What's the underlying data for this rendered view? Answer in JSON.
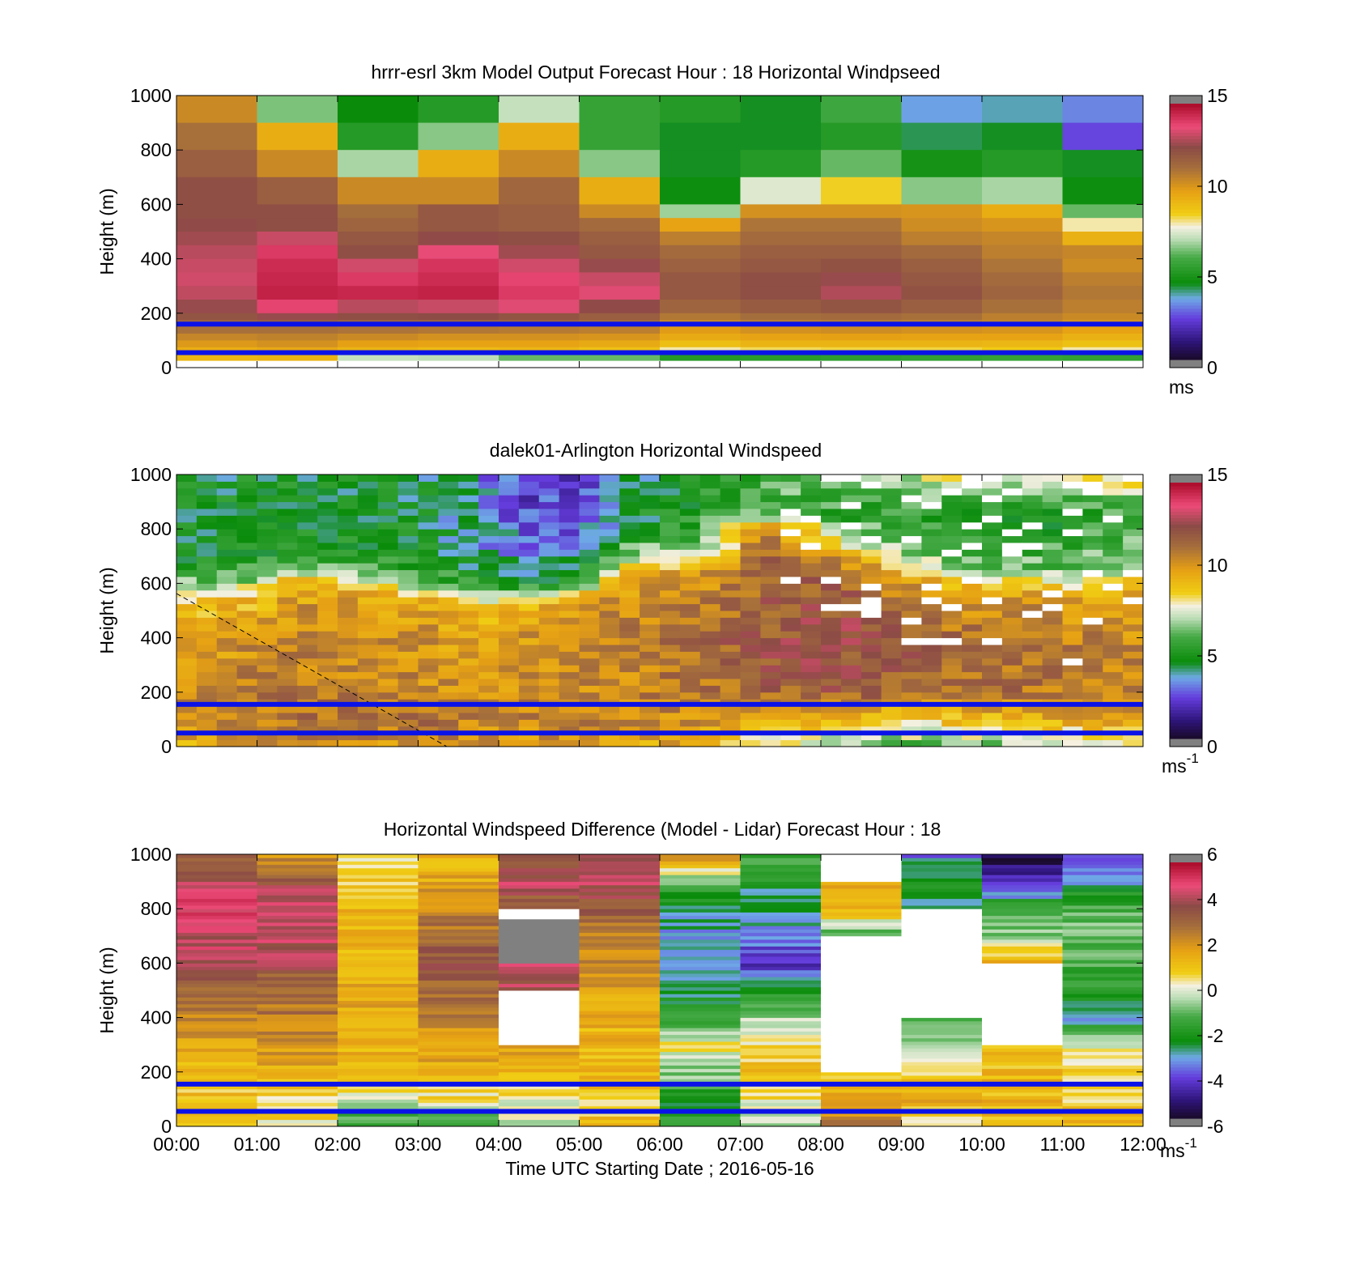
{
  "chart_data": [
    {
      "type": "heatmap",
      "title": "hrrr-esrl 3km Model Output   Forecast Hour : 18 Horizontal Windpseed",
      "ylabel": "Height (m)",
      "xlabel": "",
      "ylim": [
        0,
        1000
      ],
      "yticks": [
        "0",
        "200",
        "400",
        "600",
        "800",
        "1000"
      ],
      "xlim_hours": [
        0,
        12
      ],
      "colorbar": {
        "min": 0,
        "max": 15,
        "ticks": [
          "0",
          "5",
          "10",
          "15"
        ],
        "unit": "ms"
      },
      "time_step_hours": 1,
      "height_levels_top_m": [
        1000,
        900,
        800,
        700,
        600,
        550,
        500,
        450,
        400,
        350,
        300,
        250,
        200,
        175,
        150,
        125,
        100,
        75,
        50,
        25
      ],
      "values": [
        [
          10.5,
          6.5,
          4.5,
          5.2,
          7.2,
          5.6,
          5.2,
          4.4,
          5.8,
          3.5,
          3.8,
          3.2
        ],
        [
          11.2,
          9.5,
          5.2,
          6.6,
          9.5,
          5.6,
          4.4,
          4.4,
          5.2,
          4.2,
          4.4,
          2.5
        ],
        [
          11.8,
          10.5,
          6.9,
          9.5,
          10.5,
          6.6,
          4.4,
          5.2,
          6.3,
          4.8,
          5.2,
          4.4
        ],
        [
          12.3,
          11.8,
          10.5,
          10.5,
          11.5,
          9.5,
          4.6,
          7.5,
          8.5,
          6.6,
          6.9,
          4.6
        ],
        [
          12.3,
          12.3,
          11.3,
          12.0,
          11.8,
          10.5,
          6.8,
          10.3,
          10.3,
          10.2,
          9.5,
          6.3
        ],
        [
          12.5,
          12.3,
          11.6,
          12.0,
          11.8,
          11.4,
          9.8,
          11.1,
          11.1,
          10.4,
          10.2,
          8.0
        ],
        [
          12.7,
          13.2,
          12.0,
          12.5,
          12.3,
          11.8,
          10.8,
          11.4,
          11.4,
          10.8,
          10.6,
          9.4
        ],
        [
          13.0,
          14.0,
          12.3,
          13.6,
          12.7,
          12.0,
          11.4,
          11.8,
          11.8,
          11.4,
          10.8,
          10.6
        ],
        [
          13.2,
          14.3,
          13.3,
          14.1,
          13.3,
          12.6,
          11.7,
          12.0,
          12.2,
          11.8,
          11.1,
          10.4
        ],
        [
          13.3,
          14.4,
          14.0,
          14.3,
          13.8,
          13.2,
          12.0,
          12.3,
          12.6,
          12.0,
          11.4,
          10.8
        ],
        [
          13.1,
          14.5,
          14.4,
          14.5,
          14.0,
          13.5,
          12.0,
          12.3,
          12.9,
          12.2,
          11.6,
          11.0
        ],
        [
          12.6,
          13.8,
          13.0,
          13.2,
          13.5,
          12.5,
          11.6,
          11.9,
          12.1,
          11.8,
          11.2,
          10.8
        ],
        [
          12.1,
          12.6,
          12.3,
          12.4,
          12.1,
          11.8,
          11.0,
          11.3,
          11.4,
          11.2,
          10.8,
          10.5
        ],
        [
          11.6,
          11.8,
          11.6,
          11.6,
          11.6,
          11.4,
          10.5,
          10.8,
          10.9,
          10.8,
          10.6,
          10.2
        ],
        [
          11.2,
          11.2,
          11.1,
          11.0,
          10.9,
          10.8,
          10.0,
          10.3,
          10.4,
          10.3,
          10.2,
          9.8
        ],
        [
          10.6,
          10.7,
          10.5,
          10.3,
          10.3,
          10.2,
          9.6,
          9.8,
          9.9,
          9.8,
          9.8,
          9.4
        ],
        [
          10.1,
          10.3,
          9.9,
          9.8,
          9.8,
          9.6,
          9.0,
          9.3,
          9.3,
          9.3,
          9.2,
          8.9
        ],
        [
          9.5,
          9.7,
          9.3,
          9.1,
          9.2,
          8.9,
          8.0,
          8.3,
          8.4,
          8.4,
          8.6,
          8.0
        ],
        [
          9.2,
          9.3,
          7.2,
          7.1,
          6.3,
          6.3,
          5.2,
          5.3,
          5.4,
          5.5,
          5.6,
          5.5
        ],
        [
          null,
          null,
          null,
          null,
          null,
          null,
          null,
          null,
          null,
          null,
          null,
          null
        ]
      ],
      "reference_lines_m": [
        160,
        55
      ]
    },
    {
      "type": "heatmap",
      "title": "dalek01-Arlington  Horizontal Windspeed",
      "ylabel": "Height (m)",
      "xlabel": "",
      "ylim": [
        0,
        1000
      ],
      "yticks": [
        "0",
        "200",
        "400",
        "600",
        "800",
        "1000"
      ],
      "xlim_hours": [
        0,
        12
      ],
      "colorbar": {
        "min": 0,
        "max": 15,
        "ticks": [
          "0",
          "5",
          "10",
          "15"
        ],
        "unit": "ms",
        "unit_exp": "-1"
      },
      "time_step_hours": 0.25,
      "range_gate_m": 25,
      "valid_time_hours": [
        0,
        11.85
      ],
      "profile_keypoints": [
        {
          "t": 0.0,
          "h": [
            0,
            100,
            200,
            400,
            550,
            600,
            700,
            1000
          ],
          "v": [
            9.5,
            10.5,
            10.5,
            9.8,
            8.5,
            6.5,
            4.8,
            4.6
          ]
        },
        {
          "t": 1.0,
          "h": [
            0,
            100,
            200,
            400,
            550,
            600,
            700,
            1000
          ],
          "v": [
            10.0,
            11.0,
            10.8,
            10.3,
            9.0,
            7.0,
            5.0,
            4.6
          ]
        },
        {
          "t": 1.5,
          "h": [
            0,
            100,
            200,
            400,
            600,
            650,
            700,
            1000
          ],
          "v": [
            10.2,
            11.2,
            11.0,
            10.5,
            9.8,
            7.2,
            5.2,
            4.7
          ]
        },
        {
          "t": 3.0,
          "h": [
            0,
            100,
            200,
            400,
            550,
            600,
            700,
            1000
          ],
          "v": [
            10.3,
            11.2,
            10.6,
            10.3,
            9.5,
            6.3,
            4.8,
            4.4
          ]
        },
        {
          "t": 3.8,
          "h": [
            0,
            100,
            200,
            350,
            500,
            600,
            700,
            1000
          ],
          "v": [
            10.0,
            10.8,
            10.0,
            9.8,
            9.5,
            5.2,
            3.8,
            3.5
          ]
        },
        {
          "t": 4.3,
          "h": [
            0,
            100,
            200,
            400,
            500,
            600,
            750,
            1000
          ],
          "v": [
            9.8,
            10.8,
            10.3,
            10.2,
            9.5,
            4.8,
            3.0,
            2.0
          ]
        },
        {
          "t": 5.0,
          "h": [
            0,
            100,
            200,
            400,
            550,
            600,
            750,
            1000
          ],
          "v": [
            9.8,
            10.8,
            10.5,
            10.4,
            9.8,
            5.8,
            3.2,
            2.2
          ]
        },
        {
          "t": 5.6,
          "h": [
            0,
            100,
            200,
            400,
            600,
            700,
            800,
            1000
          ],
          "v": [
            9.6,
            10.6,
            10.6,
            10.8,
            10.0,
            7.0,
            4.5,
            4.2
          ]
        },
        {
          "t": 6.5,
          "h": [
            0,
            100,
            200,
            400,
            650,
            700,
            800,
            1000
          ],
          "v": [
            9.5,
            10.3,
            11.0,
            11.4,
            10.0,
            7.5,
            5.5,
            5.0
          ]
        },
        {
          "t": 7.3,
          "h": [
            0,
            100,
            200,
            400,
            700,
            800,
            850,
            1000
          ],
          "v": [
            8.0,
            9.3,
            11.6,
            12.0,
            11.5,
            10.5,
            6.5,
            5.5
          ]
        },
        {
          "t": 8.2,
          "h": [
            0,
            100,
            200,
            400,
            650,
            750,
            850,
            1000
          ],
          "v": [
            6.8,
            9.0,
            11.8,
            12.5,
            11.5,
            8.5,
            5.5,
            6.5
          ]
        },
        {
          "t": 9.0,
          "h": [
            0,
            100,
            200,
            400,
            600,
            700,
            850,
            1000
          ],
          "v": [
            6.0,
            8.8,
            11.5,
            12.0,
            10.5,
            7.0,
            5.0,
            7.5
          ]
        },
        {
          "t": 10.0,
          "h": [
            0,
            100,
            200,
            400,
            550,
            650,
            850,
            1000
          ],
          "v": [
            6.5,
            9.0,
            11.2,
            11.0,
            10.0,
            6.5,
            4.8,
            8.0
          ]
        },
        {
          "t": 11.0,
          "h": [
            0,
            100,
            200,
            400,
            550,
            650,
            850,
            1000
          ],
          "v": [
            7.0,
            9.5,
            11.0,
            10.8,
            10.0,
            6.3,
            5.0,
            7.5
          ]
        },
        {
          "t": 11.85,
          "h": [
            0,
            100,
            200,
            400,
            550,
            650,
            850,
            1000
          ],
          "v": [
            7.5,
            9.6,
            10.8,
            10.5,
            10.2,
            7.0,
            5.5,
            8.5
          ]
        }
      ],
      "reference_lines_m": [
        155,
        50
      ]
    },
    {
      "type": "heatmap",
      "title": "Horizontal Windspeed Difference (Model - Lidar) Forecast Hour : 18",
      "ylabel": "Height (m)",
      "xlabel": "Time UTC  Starting Date ; 2016-05-16",
      "ylim": [
        0,
        1000
      ],
      "yticks": [
        "0",
        "200",
        "400",
        "600",
        "800",
        "1000"
      ],
      "xticks": [
        "00:00",
        "01:00",
        "02:00",
        "03:00",
        "04:00",
        "05:00",
        "06:00",
        "07:00",
        "08:00",
        "09:00",
        "10:00",
        "11:00",
        "12:00"
      ],
      "xlim_hours": [
        0,
        12
      ],
      "colorbar": {
        "min": -6,
        "max": 6,
        "ticks": [
          "-6",
          "-4",
          "-2",
          "0",
          "2",
          "4",
          "6"
        ],
        "unit": "ms",
        "unit_exp": "-1"
      },
      "time_step_hours": 1,
      "profile_keypoints": [
        {
          "h": [
            0,
            100,
            200,
            300,
            400,
            500,
            600,
            700,
            800,
            900,
            1000
          ],
          "v": [
            1.5,
            1.0,
            1.3,
            1.8,
            2.6,
            3.2,
            4.2,
            4.6,
            5.0,
            4.3,
            3.0
          ]
        },
        {
          "h": [
            0,
            100,
            200,
            300,
            400,
            500,
            600,
            700,
            800,
            900,
            1000
          ],
          "v": [
            0.5,
            0.8,
            1.6,
            2.2,
            2.8,
            3.0,
            4.0,
            4.5,
            4.6,
            3.8,
            2.2
          ]
        },
        {
          "h": [
            0,
            100,
            200,
            300,
            400,
            500,
            600,
            700,
            800,
            900,
            1000
          ],
          "v": [
            -2.0,
            0.2,
            1.3,
            1.6,
            1.6,
            1.8,
            1.4,
            1.6,
            1.4,
            1.0,
            0.6
          ]
        },
        {
          "h": [
            0,
            100,
            200,
            300,
            400,
            500,
            600,
            700,
            800,
            900,
            1000
          ],
          "v": [
            -1.8,
            0.5,
            1.5,
            2.0,
            2.6,
            3.0,
            3.6,
            3.2,
            2.3,
            1.8,
            1.5
          ]
        },
        {
          "h": [
            0,
            100,
            200,
            300,
            400,
            500,
            600,
            700,
            800,
            900,
            1000
          ],
          "v": [
            -0.5,
            0.3,
            1.3,
            2.0,
            null,
            4.2,
            4.4,
            null,
            3.0,
            4.5,
            3.2
          ]
        },
        {
          "h": [
            0,
            100,
            200,
            300,
            400,
            500,
            600,
            700,
            800,
            900,
            1000
          ],
          "v": [
            1.2,
            1.0,
            1.3,
            1.4,
            1.5,
            1.8,
            2.2,
            2.7,
            3.5,
            4.5,
            4.5
          ]
        },
        {
          "h": [
            0,
            100,
            200,
            300,
            400,
            500,
            600,
            700,
            800,
            900,
            1000
          ],
          "v": [
            -1.5,
            -2.2,
            -0.6,
            0.4,
            -1.5,
            -2.6,
            -3.0,
            -3.2,
            -2.8,
            -1.0,
            2.5
          ]
        },
        {
          "h": [
            0,
            100,
            200,
            300,
            400,
            500,
            600,
            700,
            800,
            900,
            1000
          ],
          "v": [
            -0.5,
            0.5,
            1.2,
            0.8,
            -0.5,
            -1.8,
            -4.5,
            -3.3,
            -3.0,
            -2.2,
            -1.2
          ]
        },
        {
          "h": [
            0,
            100,
            200,
            300,
            400,
            500,
            600,
            700,
            800,
            900,
            1000
          ],
          "v": [
            2.8,
            1.8,
            1.0,
            null,
            null,
            null,
            null,
            -1.5,
            1.5,
            1.8,
            null
          ]
        },
        {
          "h": [
            0,
            100,
            200,
            300,
            400,
            500,
            600,
            700,
            800,
            900,
            1000
          ],
          "v": [
            0.2,
            1.6,
            0.8,
            -1.0,
            -1.3,
            null,
            null,
            null,
            -2.6,
            -2.0,
            -3.5
          ]
        },
        {
          "h": [
            0,
            100,
            200,
            300,
            400,
            500,
            600,
            700,
            800,
            900,
            1000
          ],
          "v": [
            1.0,
            1.4,
            1.4,
            1.0,
            null,
            null,
            1.6,
            -0.5,
            -1.5,
            -4.8,
            -5.5
          ]
        },
        {
          "h": [
            0,
            100,
            200,
            300,
            400,
            500,
            600,
            700,
            800,
            900,
            1000
          ],
          "v": [
            1.6,
            0.6,
            0.8,
            0.2,
            -3.2,
            -1.6,
            -1.3,
            -1.0,
            -1.2,
            -3.0,
            -3.5
          ]
        }
      ],
      "reference_lines_m": [
        155,
        55
      ]
    }
  ]
}
